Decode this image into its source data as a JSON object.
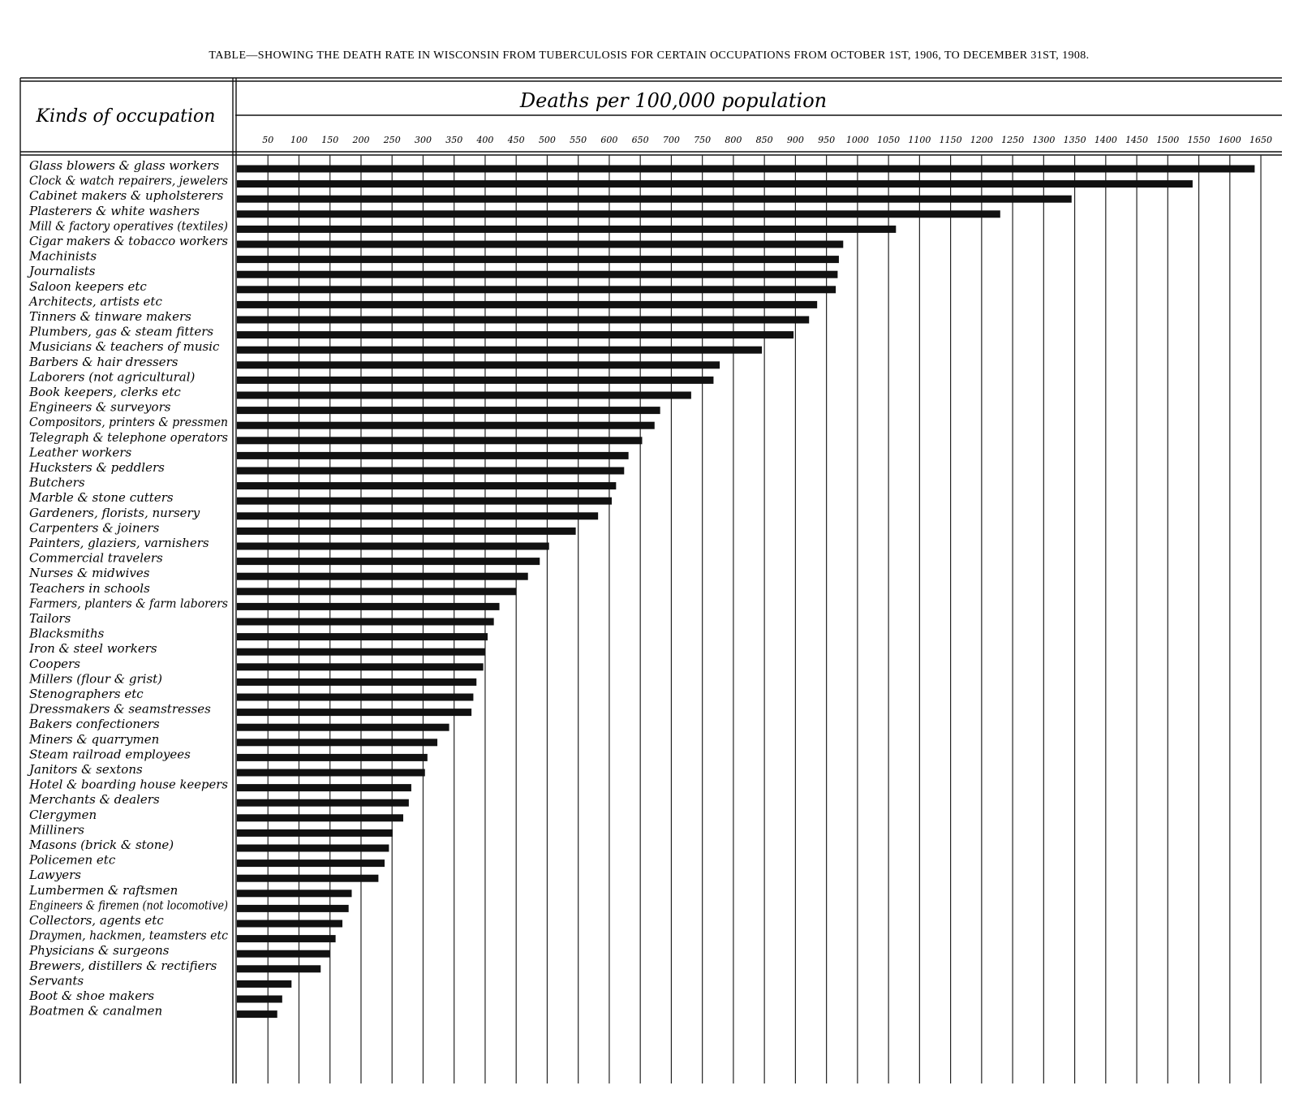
{
  "chart_data": {
    "type": "bar",
    "title": "TABLE—SHOWING THE DEATH RATE IN WISCONSIN FROM TUBERCULOSIS FOR CERTAIN OCCUPATIONS FROM OCTOBER 1ST, 1906, TO DECEMBER 31ST, 1908.",
    "y_label": "Kinds of occupation",
    "x_label": "Deaths per 100,000 population",
    "categories": [
      "Glass blowers & glass workers",
      "Clock & watch repairers, jewelers",
      "Cabinet makers & upholsterers",
      "Plasterers & white washers",
      "Mill & factory operatives (textiles)",
      "Cigar makers & tobacco workers",
      "Machinists",
      "Journalists",
      "Saloon keepers etc",
      "Architects, artists etc",
      "Tinners & tinware makers",
      "Plumbers, gas & steam fitters",
      "Musicians & teachers of music",
      "Barbers & hair dressers",
      "Laborers (not agricultural)",
      "Book keepers, clerks etc",
      "Engineers & surveyors",
      "Compositors, printers & pressmen",
      "Telegraph & telephone operators",
      "Leather workers",
      "Hucksters & peddlers",
      "Butchers",
      "Marble & stone cutters",
      "Gardeners, florists, nursery",
      "Carpenters & joiners",
      "Painters, glaziers, varnishers",
      "Commercial travelers",
      "Nurses & midwives",
      "Teachers in schools",
      "Farmers, planters & farm laborers",
      "Tailors",
      "Blacksmiths",
      "Iron & steel workers",
      "Coopers",
      "Millers (flour & grist)",
      "Stenographers etc",
      "Dressmakers & seamstresses",
      "Bakers confectioners",
      "Miners & quarrymen",
      "Steam railroad employees",
      "Janitors & sextons",
      "Hotel & boarding house keepers",
      "Merchants & dealers",
      "Clergymen",
      "Milliners",
      "Masons (brick & stone)",
      "Policemen etc",
      "Lawyers",
      "Lumbermen & raftsmen",
      "Engineers & firemen (not locomotive)",
      "Collectors, agents etc",
      "Draymen, hackmen, teamsters etc",
      "Physicians & surgeons",
      "Brewers, distillers & rectifiers",
      "Servants",
      "Boot & shoe makers",
      "Boatmen & canalmen"
    ],
    "values": [
      1640,
      1540,
      1345,
      1230,
      1062,
      977,
      970,
      968,
      965,
      935,
      922,
      897,
      846,
      778,
      768,
      732,
      682,
      673,
      653,
      631,
      624,
      611,
      604,
      582,
      546,
      503,
      488,
      469,
      450,
      423,
      414,
      404,
      400,
      397,
      386,
      381,
      378,
      342,
      323,
      307,
      303,
      281,
      277,
      268,
      251,
      245,
      238,
      228,
      185,
      180,
      170,
      159,
      150,
      135,
      88,
      73,
      65
    ],
    "color": "#111111",
    "xlim": [
      0,
      1680
    ],
    "xticks": [
      50,
      100,
      150,
      200,
      250,
      300,
      350,
      400,
      450,
      500,
      550,
      600,
      650,
      700,
      750,
      800,
      850,
      900,
      950,
      1000,
      1050,
      1100,
      1150,
      1200,
      1250,
      1300,
      1350,
      1400,
      1450,
      1500,
      1550,
      1600,
      1650
    ],
    "grid": true
  }
}
